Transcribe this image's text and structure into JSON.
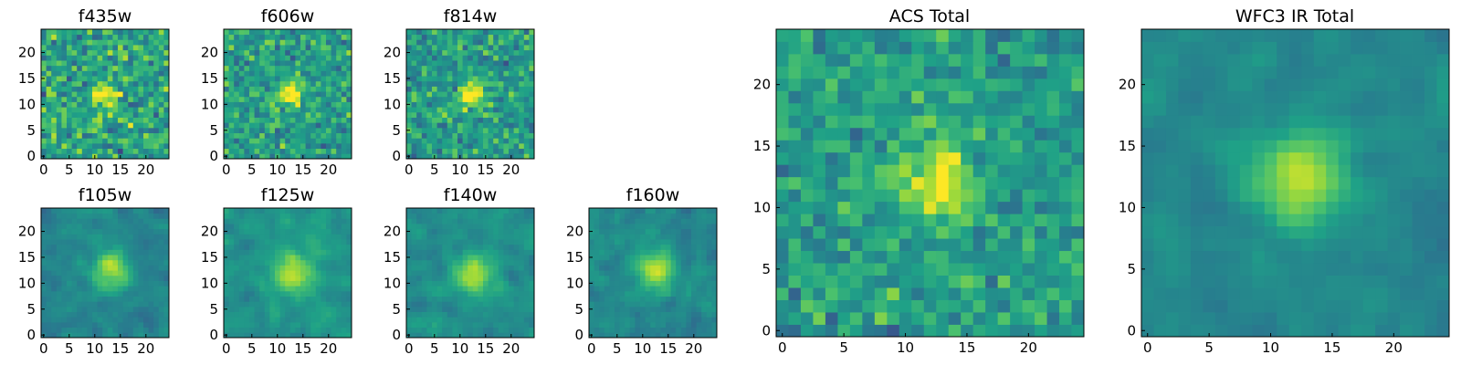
{
  "chart_data": [
    {
      "type": "heatmap",
      "title": "f435w",
      "grid": false,
      "xlim": [
        0,
        24
      ],
      "ylim": [
        0,
        24
      ],
      "xticks": [
        0,
        5,
        10,
        15,
        20
      ],
      "yticks": [
        0,
        5,
        10,
        15,
        20
      ],
      "peak": [
        12,
        12
      ],
      "spread": 1.6,
      "noise": 0.55,
      "smooth": 0,
      "seed": 11,
      "background": 0.58
    },
    {
      "type": "heatmap",
      "title": "f606w",
      "grid": false,
      "xlim": [
        0,
        24
      ],
      "ylim": [
        0,
        24
      ],
      "xticks": [
        0,
        5,
        10,
        15,
        20
      ],
      "yticks": [
        0,
        5,
        10,
        15,
        20
      ],
      "peak": [
        12.5,
        12
      ],
      "spread": 1.7,
      "noise": 0.45,
      "smooth": 0,
      "seed": 23,
      "background": 0.56
    },
    {
      "type": "heatmap",
      "title": "f814w",
      "grid": false,
      "xlim": [
        0,
        24
      ],
      "ylim": [
        0,
        24
      ],
      "xticks": [
        0,
        5,
        10,
        15,
        20
      ],
      "yticks": [
        0,
        5,
        10,
        15,
        20
      ],
      "peak": [
        12.5,
        12
      ],
      "spread": 1.8,
      "noise": 0.45,
      "smooth": 0,
      "seed": 37,
      "background": 0.55
    },
    {
      "type": "heatmap",
      "title": "f105w",
      "grid": false,
      "xlim": [
        0,
        24
      ],
      "ylim": [
        0,
        24
      ],
      "xticks": [
        0,
        5,
        10,
        15,
        20
      ],
      "yticks": [
        0,
        5,
        10,
        15,
        20
      ],
      "peak": [
        13,
        12.5
      ],
      "spread": 2.4,
      "noise": 0.4,
      "smooth": 1,
      "seed": 41,
      "background": 0.45
    },
    {
      "type": "heatmap",
      "title": "f125w",
      "grid": false,
      "xlim": [
        0,
        24
      ],
      "ylim": [
        0,
        24
      ],
      "xticks": [
        0,
        5,
        10,
        15,
        20
      ],
      "yticks": [
        0,
        5,
        10,
        15,
        20
      ],
      "peak": [
        13,
        12
      ],
      "spread": 2.4,
      "noise": 0.4,
      "smooth": 1,
      "seed": 53,
      "background": 0.52
    },
    {
      "type": "heatmap",
      "title": "f140w",
      "grid": false,
      "xlim": [
        0,
        24
      ],
      "ylim": [
        0,
        24
      ],
      "xticks": [
        0,
        5,
        10,
        15,
        20
      ],
      "yticks": [
        0,
        5,
        10,
        15,
        20
      ],
      "peak": [
        12.5,
        12
      ],
      "spread": 2.4,
      "noise": 0.4,
      "smooth": 1,
      "seed": 67,
      "background": 0.5
    },
    {
      "type": "heatmap",
      "title": "f160w",
      "grid": false,
      "xlim": [
        0,
        24
      ],
      "ylim": [
        0,
        24
      ],
      "xticks": [
        0,
        5,
        10,
        15,
        20
      ],
      "yticks": [
        0,
        5,
        10,
        15,
        20
      ],
      "peak": [
        12.5,
        12.5
      ],
      "spread": 2.4,
      "noise": 0.45,
      "smooth": 1,
      "seed": 79,
      "background": 0.47
    },
    {
      "type": "heatmap",
      "title": "ACS Total",
      "grid": false,
      "xlim": [
        0,
        24
      ],
      "ylim": [
        0,
        24
      ],
      "xticks": [
        0,
        5,
        10,
        15,
        20
      ],
      "yticks": [
        0,
        5,
        10,
        15,
        20
      ],
      "peak": [
        12.5,
        12
      ],
      "spread": 2.0,
      "noise": 0.38,
      "smooth": 0,
      "seed": 97,
      "background": 0.55
    },
    {
      "type": "heatmap",
      "title": "WFC3 IR Total",
      "grid": false,
      "xlim": [
        0,
        24
      ],
      "ylim": [
        0,
        24
      ],
      "xticks": [
        0,
        5,
        10,
        15,
        20
      ],
      "yticks": [
        0,
        5,
        10,
        15,
        20
      ],
      "peak": [
        12.5,
        12.5
      ],
      "spread": 2.6,
      "noise": 0.3,
      "smooth": 1,
      "seed": 131,
      "background": 0.46
    }
  ],
  "colormap": {
    "name": "viridis",
    "stops": [
      "#440154",
      "#46327e",
      "#365c8d",
      "#277f8e",
      "#1fa187",
      "#4ac16d",
      "#a0da39",
      "#fde725"
    ]
  }
}
